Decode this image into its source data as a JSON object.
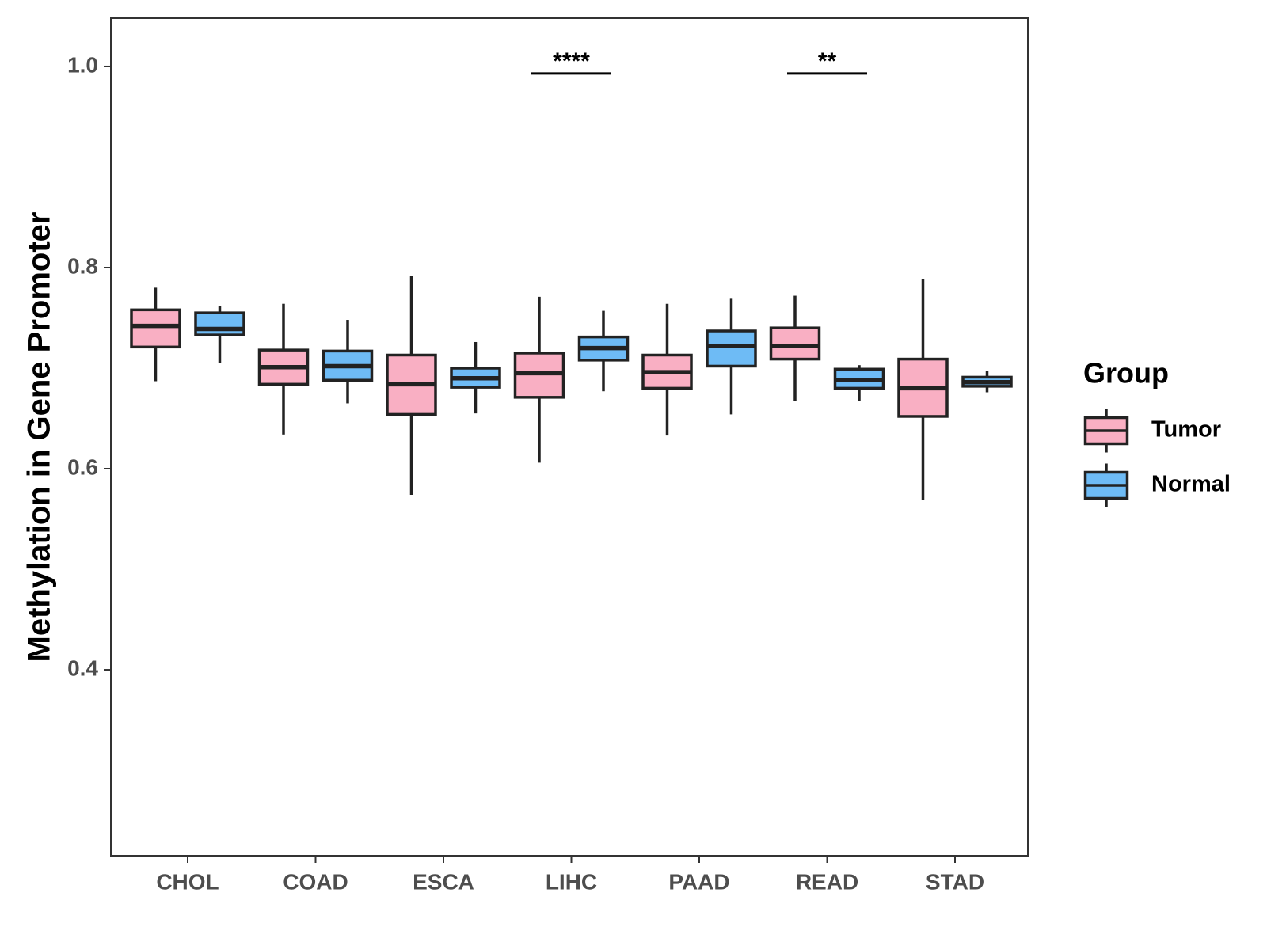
{
  "chart_data": {
    "type": "boxplot",
    "title": "",
    "xlabel": "",
    "ylabel": "Methylation in Gene Promoter",
    "ylim": [
      0.215,
      1.048
    ],
    "yticks": [
      0.4,
      0.6,
      0.8,
      1.0
    ],
    "ytick_labels": [
      "0.4",
      "0.6",
      "0.8",
      "1.0"
    ],
    "grid": false,
    "categories": [
      "CHOL",
      "COAD",
      "ESCA",
      "LIHC",
      "PAAD",
      "READ",
      "STAD"
    ],
    "legend": {
      "title": "Group",
      "position": "right",
      "entries": [
        {
          "name": "Tumor",
          "color": "#F9AFC3"
        },
        {
          "name": "Normal",
          "color": "#6EBBF5"
        }
      ]
    },
    "series": [
      {
        "name": "Tumor",
        "color": "#F9AFC3",
        "boxes": [
          {
            "category": "CHOL",
            "whisker_low": 0.687,
            "q1": 0.721,
            "median": 0.742,
            "q3": 0.758,
            "whisker_high": 0.78
          },
          {
            "category": "COAD",
            "whisker_low": 0.634,
            "q1": 0.684,
            "median": 0.701,
            "q3": 0.718,
            "whisker_high": 0.764
          },
          {
            "category": "ESCA",
            "whisker_low": 0.574,
            "q1": 0.654,
            "median": 0.684,
            "q3": 0.713,
            "whisker_high": 0.792
          },
          {
            "category": "LIHC",
            "whisker_low": 0.606,
            "q1": 0.671,
            "median": 0.695,
            "q3": 0.715,
            "whisker_high": 0.771
          },
          {
            "category": "PAAD",
            "whisker_low": 0.633,
            "q1": 0.68,
            "median": 0.696,
            "q3": 0.713,
            "whisker_high": 0.764
          },
          {
            "category": "READ",
            "whisker_low": 0.667,
            "q1": 0.709,
            "median": 0.722,
            "q3": 0.74,
            "whisker_high": 0.772
          },
          {
            "category": "STAD",
            "whisker_low": 0.569,
            "q1": 0.652,
            "median": 0.68,
            "q3": 0.709,
            "whisker_high": 0.789
          }
        ]
      },
      {
        "name": "Normal",
        "color": "#6EBBF5",
        "boxes": [
          {
            "category": "CHOL",
            "whisker_low": 0.705,
            "q1": 0.733,
            "median": 0.739,
            "q3": 0.755,
            "whisker_high": 0.762
          },
          {
            "category": "COAD",
            "whisker_low": 0.665,
            "q1": 0.688,
            "median": 0.702,
            "q3": 0.717,
            "whisker_high": 0.748
          },
          {
            "category": "ESCA",
            "whisker_low": 0.655,
            "q1": 0.681,
            "median": 0.69,
            "q3": 0.7,
            "whisker_high": 0.726
          },
          {
            "category": "LIHC",
            "whisker_low": 0.677,
            "q1": 0.708,
            "median": 0.72,
            "q3": 0.731,
            "whisker_high": 0.757
          },
          {
            "category": "PAAD",
            "whisker_low": 0.654,
            "q1": 0.702,
            "median": 0.722,
            "q3": 0.737,
            "whisker_high": 0.769
          },
          {
            "category": "READ",
            "whisker_low": 0.667,
            "q1": 0.68,
            "median": 0.688,
            "q3": 0.699,
            "whisker_high": 0.703
          },
          {
            "category": "STAD",
            "whisker_low": 0.676,
            "q1": 0.682,
            "median": 0.686,
            "q3": 0.691,
            "whisker_high": 0.697
          }
        ]
      }
    ],
    "annotations": [
      {
        "category": "LIHC",
        "label": "****",
        "y": 0.993
      },
      {
        "category": "READ",
        "label": "**",
        "y": 0.993
      }
    ]
  }
}
